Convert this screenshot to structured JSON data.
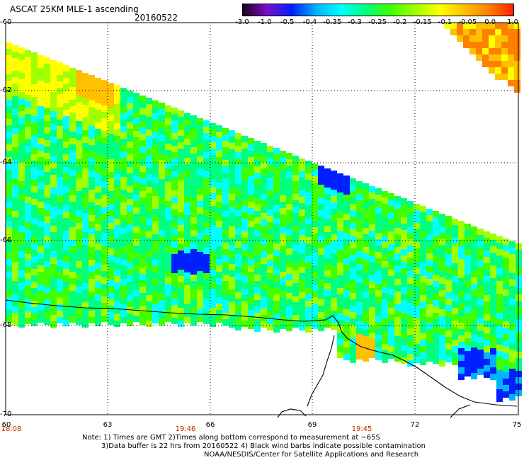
{
  "header": {
    "title": "ASCAT 25KM MLE-1 ascending",
    "date": "20160522"
  },
  "colorbar": {
    "labels": [
      "-3.0",
      "-1.0",
      "-0.5",
      "-0.4",
      "-0.35",
      "-0.3",
      "-0.25",
      "-0.2",
      "-0.15",
      "-0.1",
      "-0.05",
      "0.0",
      "1.0"
    ],
    "colors": [
      "#200020",
      "#7a10c8",
      "#0020ff",
      "#00b4ff",
      "#00ffff",
      "#00ff80",
      "#40ff00",
      "#a0ff00",
      "#ffff00",
      "#ffc000",
      "#ff8000",
      "#ff2000"
    ]
  },
  "map": {
    "lat_labels": [
      "-60",
      "-62",
      "-64",
      "-66",
      "-68",
      "-70"
    ],
    "lon_labels": [
      "60",
      "63",
      "66",
      "69",
      "72",
      "75"
    ],
    "time_labels": [
      "18:08",
      "19:46",
      "19:45"
    ]
  },
  "notes": {
    "line1": "Note: 1) Times are GMT 2)Times along bottom correspond to measurement at ~65S",
    "line2": "3)Data buffer is 22 hrs from 20160522 4) Black wind barbs indicate possible contamination",
    "line3": "NOAA/NESDIS/Center for Satellite Applications and Research"
  }
}
